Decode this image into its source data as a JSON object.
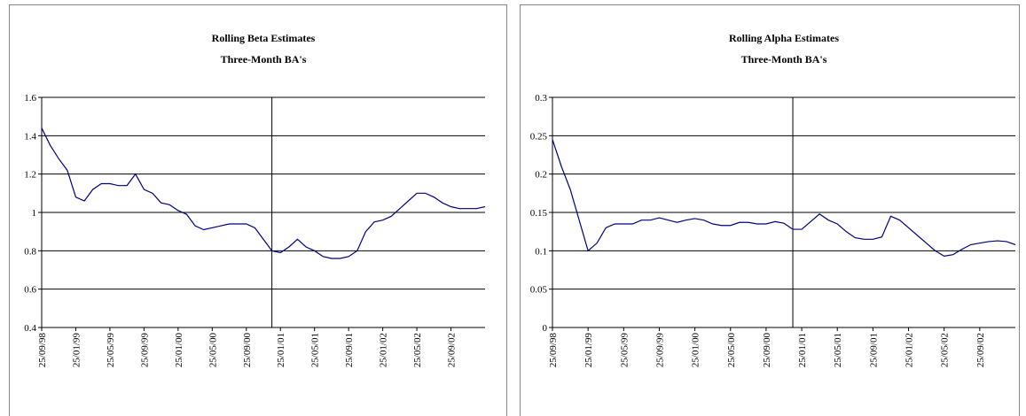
{
  "chart_data": [
    {
      "type": "line",
      "title": "Rolling Beta Estimates",
      "subtitle": "Three-Month BA's",
      "x": [
        "25/09/98",
        "25/10/98",
        "25/11/98",
        "25/12/98",
        "25/01/99",
        "25/02/99",
        "25/03/99",
        "25/04/99",
        "25/05/99",
        "25/06/99",
        "25/07/99",
        "25/08/99",
        "25/09/99",
        "25/10/99",
        "25/11/99",
        "25/12/99",
        "25/01/00",
        "25/02/00",
        "25/03/00",
        "25/04/00",
        "25/05/00",
        "25/06/00",
        "25/07/00",
        "25/08/00",
        "25/09/00",
        "25/10/00",
        "25/11/00",
        "25/12/00",
        "25/01/01",
        "25/02/01",
        "25/03/01",
        "25/04/01",
        "25/05/01",
        "25/06/01",
        "25/07/01",
        "25/08/01",
        "25/09/01",
        "25/10/01",
        "25/11/01",
        "25/12/01",
        "25/01/02",
        "25/02/02",
        "25/03/02",
        "25/04/02",
        "25/05/02",
        "25/06/02",
        "25/07/02",
        "25/08/02",
        "25/09/02",
        "25/10/02",
        "25/11/02",
        "25/12/02",
        "25/01/03"
      ],
      "series": [
        {
          "color": "#000080",
          "values": [
            1.44,
            1.35,
            1.28,
            1.22,
            1.08,
            1.06,
            1.12,
            1.15,
            1.15,
            1.14,
            1.14,
            1.2,
            1.12,
            1.1,
            1.05,
            1.04,
            1.01,
            0.99,
            0.93,
            0.91,
            0.92,
            0.93,
            0.94,
            0.94,
            0.94,
            0.92,
            0.86,
            0.8,
            0.79,
            0.82,
            0.86,
            0.82,
            0.8,
            0.77,
            0.76,
            0.76,
            0.77,
            0.8,
            0.9,
            0.95,
            0.96,
            0.98,
            1.02,
            1.06,
            1.1,
            1.1,
            1.08,
            1.05,
            1.03,
            1.02,
            1.02,
            1.02,
            1.03
          ]
        }
      ],
      "xticks": [
        "25/09/98",
        "25/01/99",
        "25/05/99",
        "25/09/99",
        "25/01/00",
        "25/05/00",
        "25/09/00",
        "25/01/01",
        "25/05/01",
        "25/09/01",
        "25/01/02",
        "25/05/02",
        "25/09/02"
      ],
      "event_x": "25/12/00",
      "ylim": [
        0.4,
        1.6
      ],
      "yticks": [
        0.4,
        0.6,
        0.8,
        1,
        1.2,
        1.4,
        1.6
      ],
      "grid": true
    },
    {
      "type": "line",
      "title": "Rolling Alpha Estimates",
      "subtitle": "Three-Month BA's",
      "x": [
        "25/09/98",
        "25/10/98",
        "25/11/98",
        "25/12/98",
        "25/01/99",
        "25/02/99",
        "25/03/99",
        "25/04/99",
        "25/05/99",
        "25/06/99",
        "25/07/99",
        "25/08/99",
        "25/09/99",
        "25/10/99",
        "25/11/99",
        "25/12/99",
        "25/01/00",
        "25/02/00",
        "25/03/00",
        "25/04/00",
        "25/05/00",
        "25/06/00",
        "25/07/00",
        "25/08/00",
        "25/09/00",
        "25/10/00",
        "25/11/00",
        "25/12/00",
        "25/01/01",
        "25/02/01",
        "25/03/01",
        "25/04/01",
        "25/05/01",
        "25/06/01",
        "25/07/01",
        "25/08/01",
        "25/09/01",
        "25/10/01",
        "25/11/01",
        "25/12/01",
        "25/01/02",
        "25/02/02",
        "25/03/02",
        "25/04/02",
        "25/05/02",
        "25/06/02",
        "25/07/02",
        "25/08/02",
        "25/09/02",
        "25/10/02",
        "25/11/02",
        "25/12/02",
        "25/01/03"
      ],
      "series": [
        {
          "color": "#000080",
          "values": [
            0.245,
            0.21,
            0.18,
            0.14,
            0.1,
            0.11,
            0.13,
            0.135,
            0.135,
            0.135,
            0.14,
            0.14,
            0.143,
            0.14,
            0.137,
            0.14,
            0.142,
            0.14,
            0.135,
            0.133,
            0.133,
            0.137,
            0.137,
            0.135,
            0.135,
            0.138,
            0.136,
            0.128,
            0.128,
            0.138,
            0.148,
            0.14,
            0.135,
            0.125,
            0.117,
            0.115,
            0.115,
            0.118,
            0.145,
            0.14,
            0.13,
            0.12,
            0.11,
            0.1,
            0.093,
            0.095,
            0.102,
            0.108,
            0.11,
            0.112,
            0.113,
            0.112,
            0.108
          ]
        }
      ],
      "xticks": [
        "25/09/98",
        "25/01/99",
        "25/05/99",
        "25/09/99",
        "25/01/00",
        "25/05/00",
        "25/09/00",
        "25/01/01",
        "25/05/01",
        "25/09/01",
        "25/01/02",
        "25/05/02",
        "25/09/02"
      ],
      "event_x": "25/12/00",
      "ylim": [
        0,
        0.3
      ],
      "yticks": [
        0,
        0.05,
        0.1,
        0.15,
        0.2,
        0.25,
        0.3
      ],
      "grid": true
    }
  ]
}
